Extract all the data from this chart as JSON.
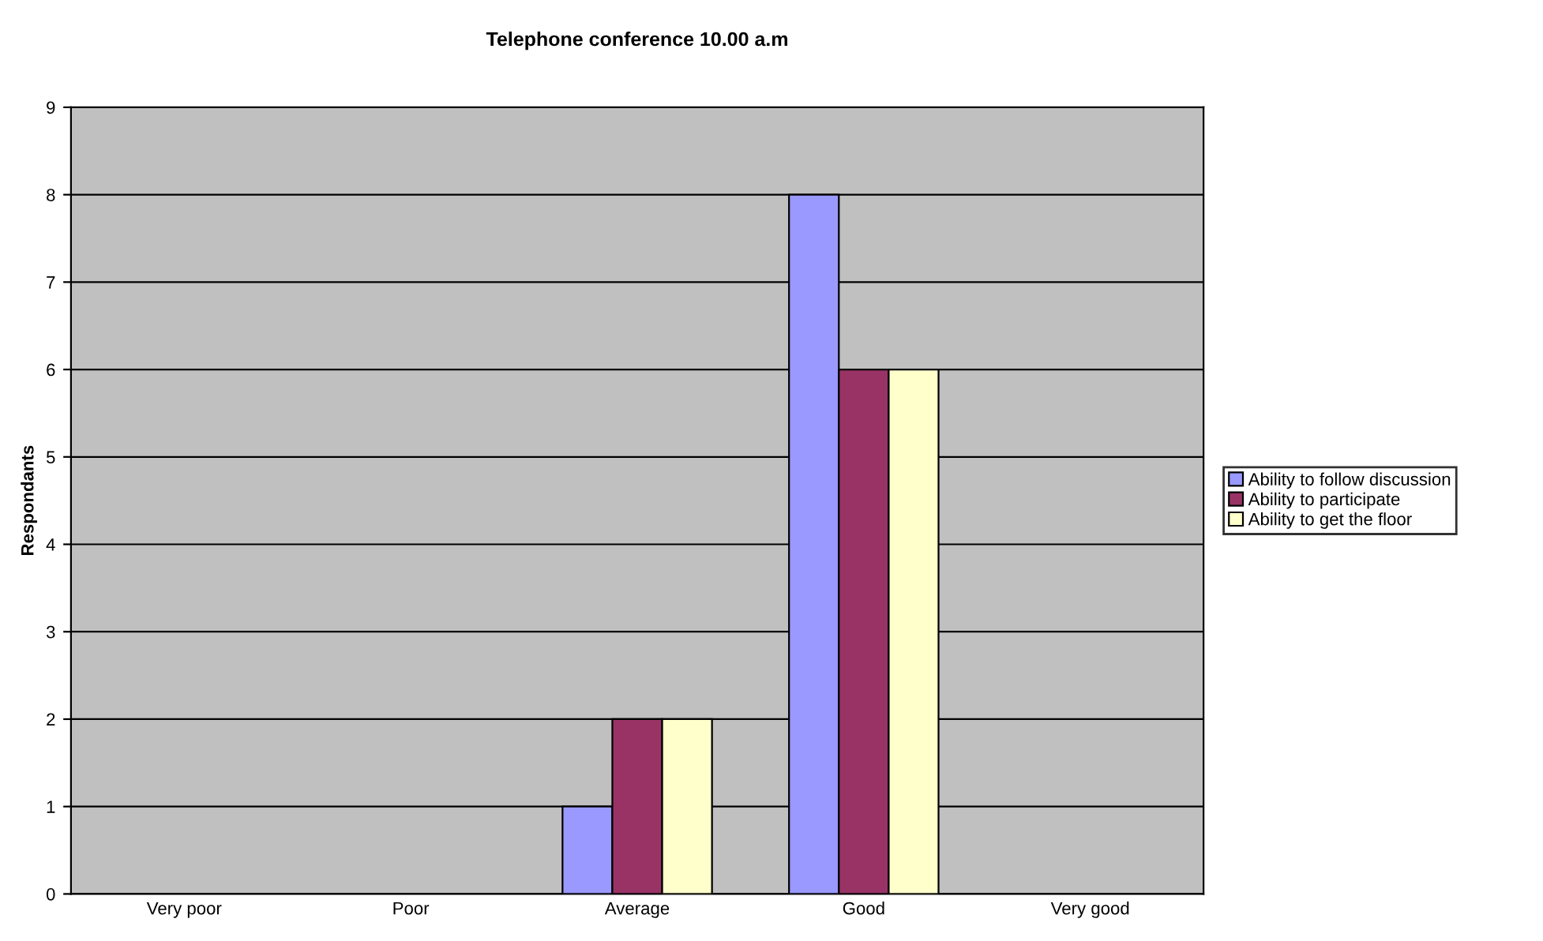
{
  "chart_data": {
    "type": "bar",
    "title": "Telephone conference 10.00 a.m",
    "ylabel": "Respondants",
    "categories": [
      "Very poor",
      "Poor",
      "Average",
      "Good",
      "Very good"
    ],
    "series": [
      {
        "name": "Ability to follow discussion",
        "color": "#9999ff",
        "values": [
          0,
          0,
          1,
          8,
          0
        ]
      },
      {
        "name": "Ability to participate",
        "color": "#993366",
        "values": [
          0,
          0,
          2,
          6,
          0
        ]
      },
      {
        "name": "Ability to get the floor",
        "color": "#ffffcc",
        "values": [
          0,
          0,
          2,
          6,
          0
        ]
      }
    ],
    "ylim": [
      0,
      9
    ],
    "yticks": [
      0,
      1,
      2,
      3,
      4,
      5,
      6,
      7,
      8,
      9
    ],
    "grid": "y",
    "legend": "right"
  }
}
